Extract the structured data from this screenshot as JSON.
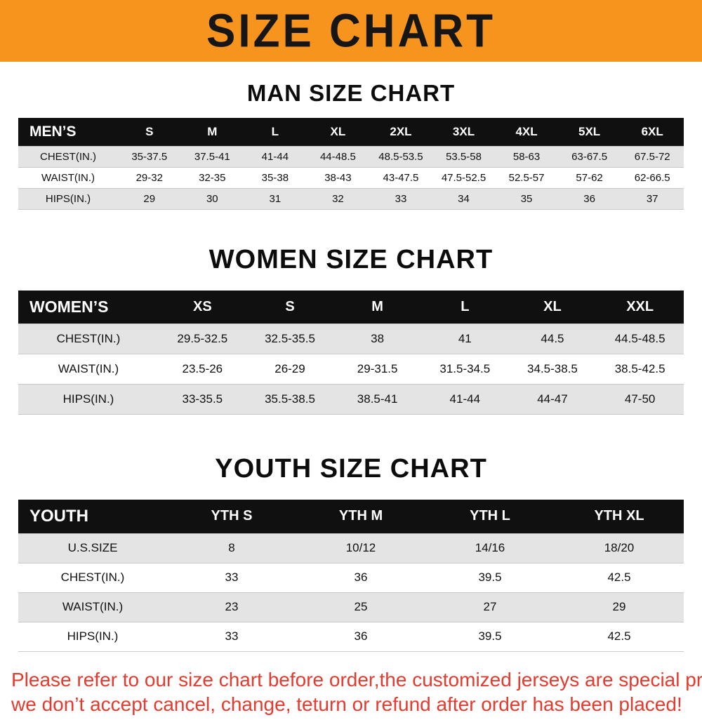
{
  "banner": {
    "title": "SIZE CHART",
    "bg_color": "#f7941e",
    "text_color": "#161616"
  },
  "sections": [
    {
      "heading": "MAN SIZE CHART",
      "table": {
        "header": [
          "MEN’S",
          "S",
          "M",
          "L",
          "XL",
          "2XL",
          "3XL",
          "4XL",
          "5XL",
          "6XL"
        ],
        "rows": [
          [
            "CHEST(IN.)",
            "35-37.5",
            "37.5-41",
            "41-44",
            "44-48.5",
            "48.5-53.5",
            "53.5-58",
            "58-63",
            "63-67.5",
            "67.5-72"
          ],
          [
            "WAIST(IN.)",
            "29-32",
            "32-35",
            "35-38",
            "38-43",
            "43-47.5",
            "47.5-52.5",
            "52.5-57",
            "57-62",
            "62-66.5"
          ],
          [
            "HIPS(IN.)",
            "29",
            "30",
            "31",
            "32",
            "33",
            "34",
            "35",
            "36",
            "37"
          ]
        ]
      }
    },
    {
      "heading": "WOMEN SIZE CHART",
      "table": {
        "header": [
          "WOMEN’S",
          "XS",
          "S",
          "M",
          "L",
          "XL",
          "XXL"
        ],
        "rows": [
          [
            "CHEST(IN.)",
            "29.5-32.5",
            "32.5-35.5",
            "38",
            "41",
            "44.5",
            "44.5-48.5"
          ],
          [
            "WAIST(IN.)",
            "23.5-26",
            "26-29",
            "29-31.5",
            "31.5-34.5",
            "34.5-38.5",
            "38.5-42.5"
          ],
          [
            "HIPS(IN.)",
            "33-35.5",
            "35.5-38.5",
            "38.5-41",
            "41-44",
            "44-47",
            "47-50"
          ]
        ]
      }
    },
    {
      "heading": "YOUTH SIZE CHART",
      "table": {
        "header": [
          "YOUTH",
          "YTH S",
          "YTH M",
          "YTH L",
          "YTH XL"
        ],
        "rows": [
          [
            "U.S.SIZE",
            "8",
            "10/12",
            "14/16",
            "18/20"
          ],
          [
            "CHEST(IN.)",
            "33",
            "36",
            "39.5",
            "42.5"
          ],
          [
            "WAIST(IN.)",
            "23",
            "25",
            "27",
            "29"
          ],
          [
            "HIPS(IN.)",
            "33",
            "36",
            "39.5",
            "42.5"
          ]
        ]
      }
    }
  ],
  "footer": {
    "line1": "Please refer to our size chart before order,the customized jerseys are special products,",
    "line2": "we don’t accept cancel, change, teturn or refund after order has been placed!",
    "text_color": "#e63a2e"
  }
}
